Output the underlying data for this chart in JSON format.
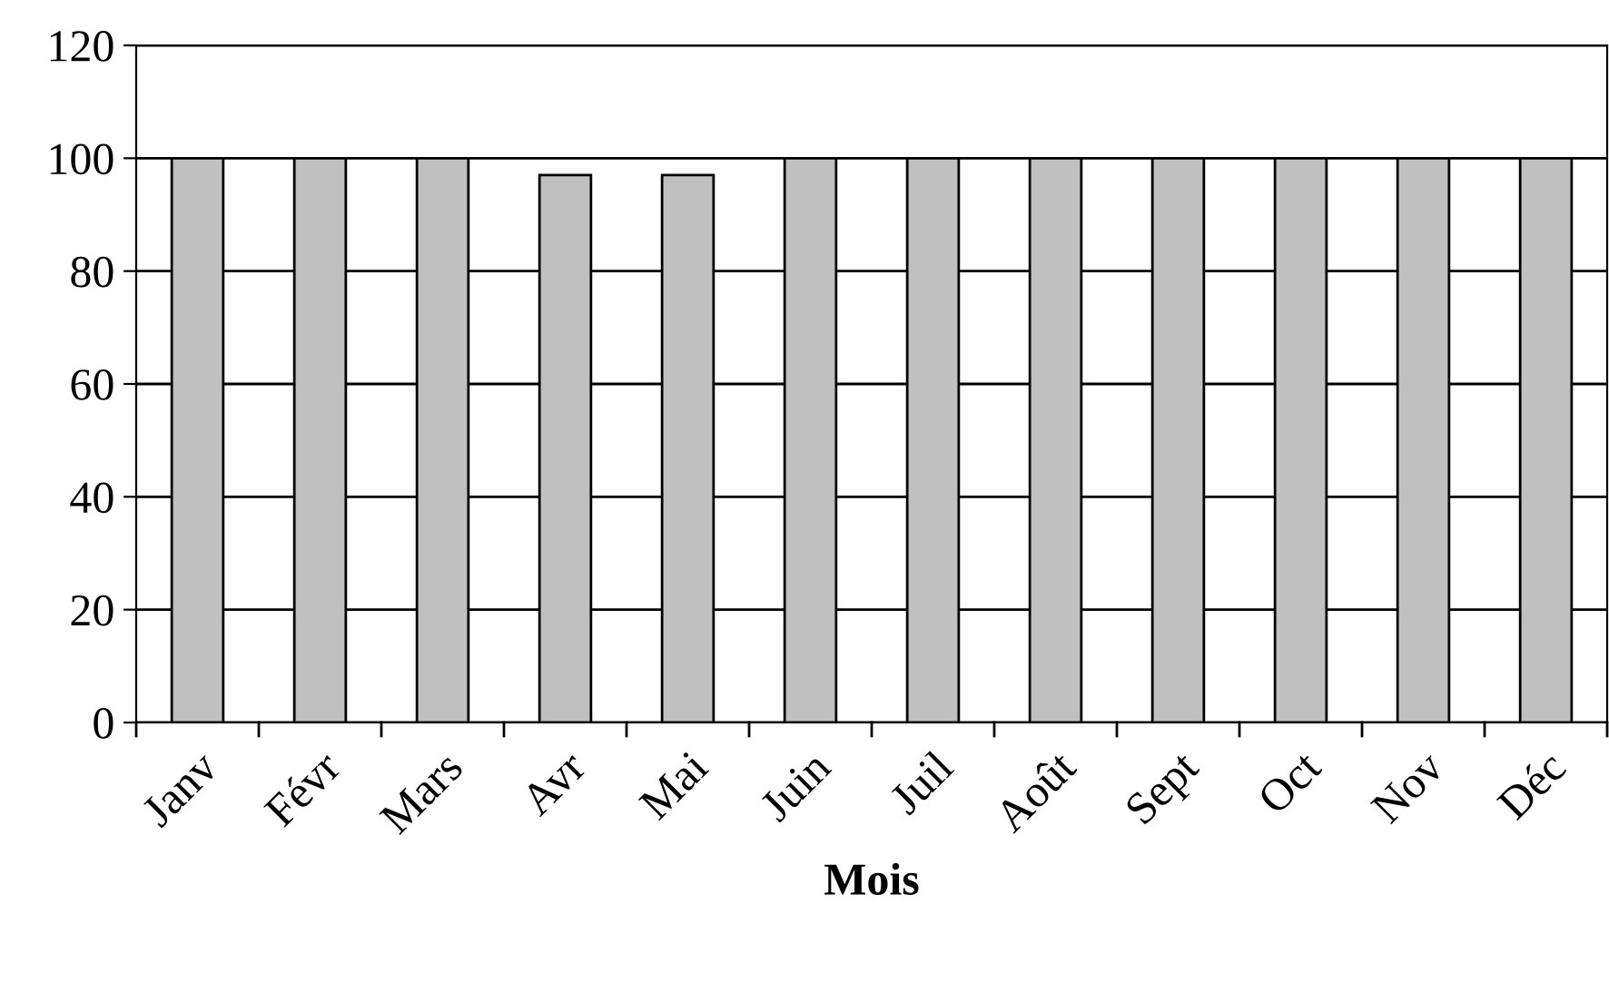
{
  "chart_data": {
    "type": "bar",
    "xlabel": "Mois",
    "categories": [
      "Janv",
      "Févr",
      "Mars",
      "Avr",
      "Mai",
      "Juin",
      "Juil",
      "Août",
      "Sept",
      "Oct",
      "Nov",
      "Déc"
    ],
    "values": [
      100,
      100,
      100,
      97,
      97,
      100,
      100,
      100,
      100,
      100,
      100,
      100
    ],
    "color": "#c0c0c0",
    "ylim": [
      0,
      120
    ],
    "yticks": [
      0,
      20,
      40,
      60,
      80,
      100,
      120
    ],
    "grid": "y"
  }
}
